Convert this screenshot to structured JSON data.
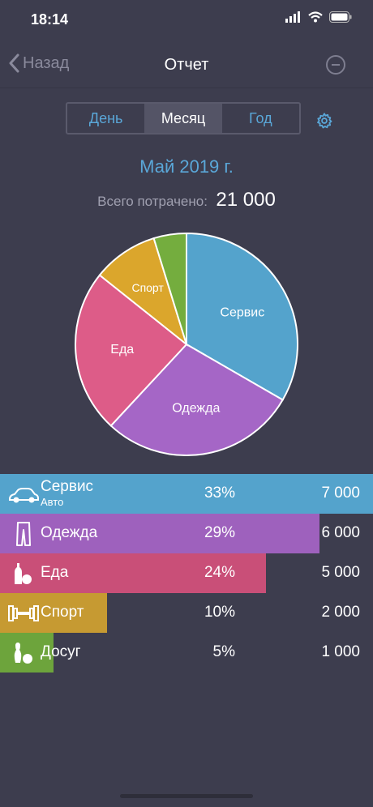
{
  "status": {
    "time": "18:14"
  },
  "nav": {
    "back_label": "Назад",
    "title": "Отчет"
  },
  "tabs": [
    {
      "label": "День",
      "selected": false
    },
    {
      "label": "Месяц",
      "selected": true
    },
    {
      "label": "Год",
      "selected": false
    }
  ],
  "period": "Май 2019 г.",
  "total": {
    "label": "Всего потрачено:",
    "value": "21 000"
  },
  "chart_data": {
    "type": "pie",
    "slices": [
      {
        "label": "Сервис",
        "value": 7000,
        "color": "#54a3cc"
      },
      {
        "label": "Одежда",
        "value": 6000,
        "color": "#a566c6"
      },
      {
        "label": "Еда",
        "value": 5000,
        "color": "#dd5c88"
      },
      {
        "label": "Спорт",
        "value": 2000,
        "color": "#dba62c"
      },
      {
        "label": "",
        "value": 1000,
        "color": "#74ad3e"
      }
    ]
  },
  "categories": [
    {
      "name": "Сервис",
      "sub": "Авто",
      "pct": "33%",
      "amount": "7 000",
      "share": 1.0,
      "color": "#54a3cc",
      "icon": "car-icon"
    },
    {
      "name": "Одежда",
      "sub": "",
      "pct": "29%",
      "amount": "6 000",
      "share": 0.857,
      "color": "#9e61bd",
      "icon": "trousers-icon"
    },
    {
      "name": "Еда",
      "sub": "",
      "pct": "24%",
      "amount": "5 000",
      "share": 0.714,
      "color": "#c94f78",
      "icon": "food-icon"
    },
    {
      "name": "Спорт",
      "sub": "",
      "pct": "10%",
      "amount": "2 000",
      "share": 0.286,
      "color": "#c69a32",
      "icon": "dumbbell-icon"
    },
    {
      "name": "Досуг",
      "sub": "",
      "pct": "5%",
      "amount": "1 000",
      "share": 0.143,
      "color": "#6da43c",
      "icon": "bowling-icon"
    }
  ]
}
